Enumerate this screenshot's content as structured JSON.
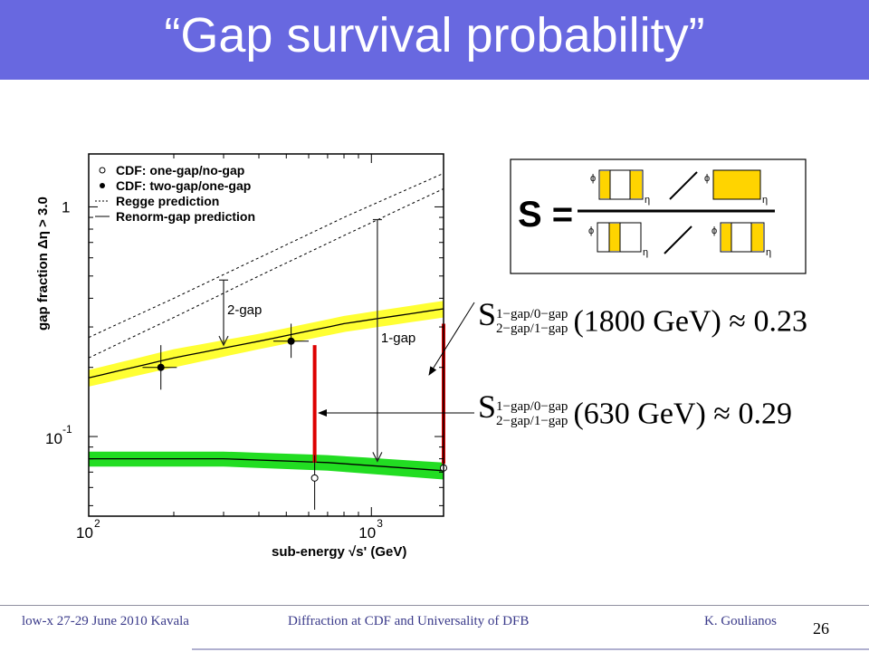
{
  "slide": {
    "title": "“Gap survival probability”",
    "footer_left": "low-x 27-29 June 2010 Kavala",
    "footer_center": "Diffraction at CDF and Universality of DFB",
    "footer_right": "K. Goulianos",
    "page_number": "26"
  },
  "formula_box": {
    "lhs": "S =",
    "phi": "ϕ",
    "eta": "η"
  },
  "formulas": [
    {
      "S": "S",
      "sup": "1−gap/0−gap",
      "sub": "2−gap/1−gap",
      "rest": "(1800 GeV) ≈ 0.23"
    },
    {
      "S": "S",
      "sup": "1−gap/0−gap",
      "sub": "2−gap/1−gap",
      "rest": "(630 GeV) ≈ 0.29"
    }
  ],
  "colors": {
    "title_bar": "#6868e0",
    "yellow_band": "#ffff33",
    "green_band": "#22dd22",
    "red_bar": "#dd0000",
    "box_fill": "#ffd400"
  },
  "chart_data": {
    "type": "scatter",
    "ylabel": "gap fraction Δη > 3.0",
    "xlabel": "sub-energy √s' (GeV)",
    "xscale": "log",
    "yscale": "log",
    "xlim": [
      100,
      1800
    ],
    "ylim": [
      0.045,
      1.7
    ],
    "x_ticks": [
      {
        "value": 100,
        "base": "10",
        "exp": "2"
      },
      {
        "value": 1000,
        "base": "10",
        "exp": "3"
      }
    ],
    "y_ticks": [
      {
        "value": 1,
        "label": "1"
      },
      {
        "value": 0.1,
        "base": "10",
        "exp": "-1"
      }
    ],
    "legend": [
      {
        "marker": "open-circle",
        "label": "CDF: one-gap/no-gap"
      },
      {
        "marker": "filled-circle",
        "label": "CDF: two-gap/one-gap"
      },
      {
        "marker": "dotted-line",
        "label": "Regge prediction"
      },
      {
        "marker": "solid-line",
        "label": "Renorm-gap prediction"
      }
    ],
    "legend_position": "top-left",
    "series": [
      {
        "name": "CDF: one-gap/no-gap",
        "marker": "open",
        "points": [
          {
            "x": 630,
            "y": 0.066,
            "ylow": 0.048,
            "yhigh": 0.083
          },
          {
            "x": 1800,
            "y": 0.073,
            "ylow": 0.062,
            "yhigh": 0.085
          }
        ]
      },
      {
        "name": "CDF: two-gap/one-gap",
        "marker": "filled",
        "points": [
          {
            "x": 180,
            "y": 0.2,
            "ylow": 0.16,
            "yhigh": 0.25,
            "xlow": 155,
            "xhigh": 205
          },
          {
            "x": 520,
            "y": 0.26,
            "ylow": 0.22,
            "yhigh": 0.31,
            "xlow": 450,
            "xhigh": 600
          }
        ]
      },
      {
        "name": "Regge prediction",
        "style": "dotted",
        "curves": [
          {
            "x": [
              100,
              200,
              400,
              800,
              1800
            ],
            "y": [
              0.22,
              0.33,
              0.5,
              0.75,
              1.2
            ]
          },
          {
            "x": [
              100,
              200,
              400,
              800,
              1800
            ],
            "y": [
              0.27,
              0.4,
              0.6,
              0.9,
              1.4
            ]
          }
        ]
      },
      {
        "name": "Renorm-gap prediction",
        "style": "solid",
        "curves": [
          {
            "x": [
              100,
              200,
              400,
              800,
              1800
            ],
            "y": [
              0.18,
              0.22,
              0.26,
              0.31,
              0.36
            ]
          },
          {
            "x": [
              100,
              300,
              700,
              1800
            ],
            "y": [
              0.08,
              0.08,
              0.077,
              0.071
            ]
          }
        ]
      }
    ],
    "bands": [
      {
        "name": "yellow",
        "x": [
          100,
          200,
          400,
          800,
          1800
        ],
        "ylow": [
          0.165,
          0.2,
          0.24,
          0.285,
          0.33
        ],
        "yhigh": [
          0.195,
          0.24,
          0.28,
          0.335,
          0.39
        ]
      },
      {
        "name": "green",
        "x": [
          100,
          300,
          700,
          1800
        ],
        "ylow": [
          0.074,
          0.074,
          0.071,
          0.065
        ],
        "yhigh": [
          0.086,
          0.086,
          0.083,
          0.077
        ]
      }
    ],
    "annotations": [
      {
        "label": "2-gap",
        "x": 300,
        "ytop": 0.48,
        "ybottom": 0.25
      },
      {
        "label": "1-gap",
        "x": 1050,
        "ytop": 0.88,
        "ybottom": 0.078
      }
    ],
    "red_bars": [
      {
        "x": 630,
        "ylow": 0.077,
        "yhigh": 0.25
      },
      {
        "x": 1800,
        "ylow": 0.076,
        "yhigh": 0.31
      }
    ]
  }
}
